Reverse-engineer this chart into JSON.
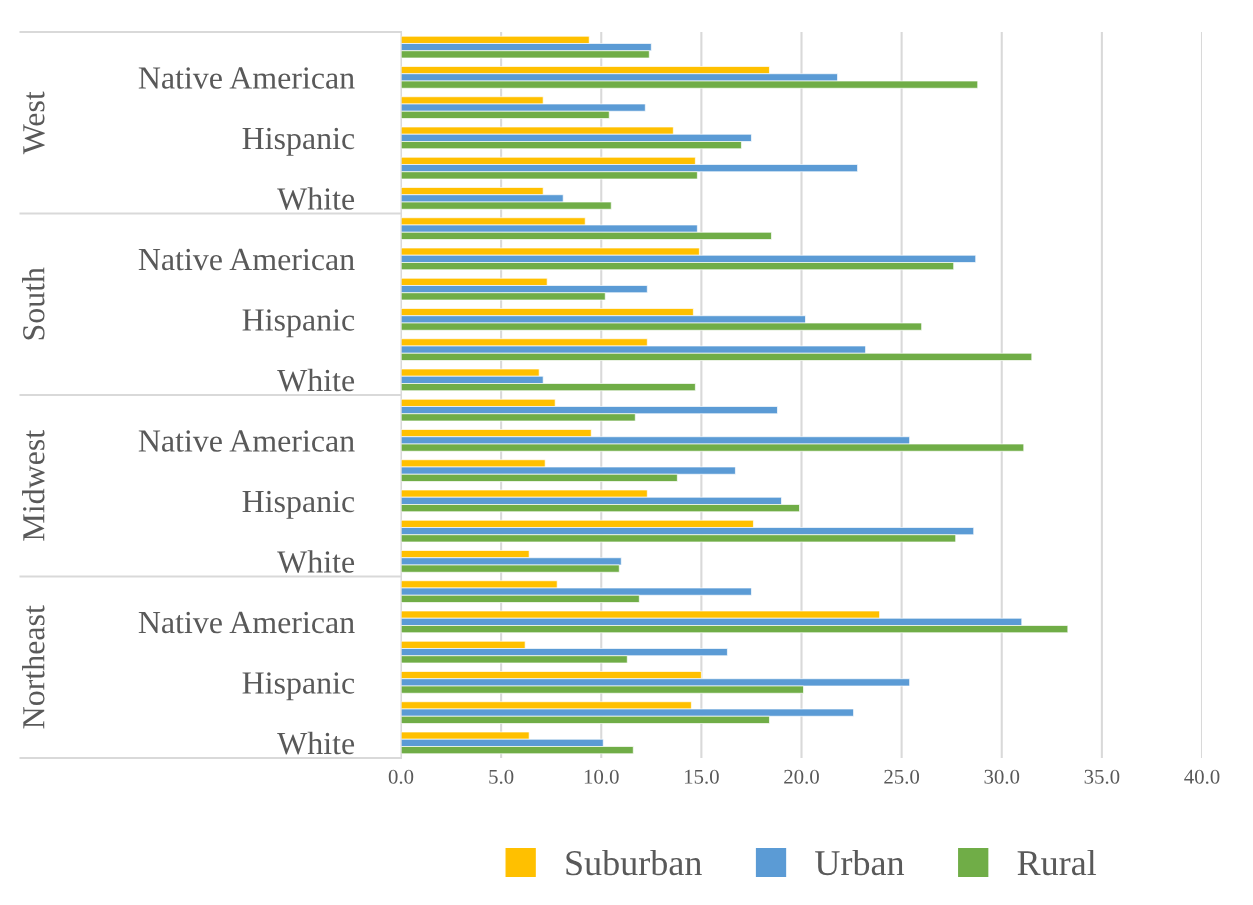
{
  "chart_data": {
    "type": "bar",
    "orientation": "horizontal",
    "categories": [
      null,
      "Native American",
      null,
      "Hispanic",
      null,
      "White",
      null,
      "Native American",
      null,
      "Hispanic",
      null,
      "White",
      null,
      "Native American",
      null,
      "Hispanic",
      null,
      "White",
      null,
      "Native American",
      null,
      "Hispanic",
      null,
      "White"
    ],
    "series": [
      {
        "name": "Suburban",
        "color": "#ffc000",
        "values": [
          9.4,
          18.4,
          7.1,
          13.6,
          14.7,
          7.1,
          9.2,
          14.9,
          7.3,
          14.6,
          12.3,
          6.9,
          7.7,
          9.5,
          7.2,
          12.3,
          17.6,
          6.4,
          7.8,
          23.9,
          6.2,
          15.0,
          14.5,
          6.4
        ]
      },
      {
        "name": "Urban",
        "color": "#5b9bd5",
        "values": [
          12.5,
          21.8,
          12.2,
          17.5,
          22.8,
          8.1,
          14.8,
          28.7,
          12.3,
          20.2,
          23.2,
          7.1,
          18.8,
          25.4,
          16.7,
          19.0,
          28.6,
          11.0,
          17.5,
          31.0,
          16.3,
          25.4,
          22.6,
          10.1
        ]
      },
      {
        "name": "Rural",
        "color": "#70ad47",
        "values": [
          12.4,
          28.8,
          10.4,
          17.0,
          14.8,
          10.5,
          18.5,
          27.6,
          10.2,
          26.0,
          31.5,
          14.7,
          11.7,
          31.1,
          13.8,
          19.9,
          27.7,
          10.9,
          11.9,
          33.3,
          11.3,
          20.1,
          18.4,
          11.6
        ]
      }
    ],
    "annotations": [
      "West",
      "South",
      "Midwest",
      "Northeast"
    ],
    "xlim": [
      0,
      40
    ],
    "xticks": [
      {
        "value": 0,
        "label": "0.0"
      },
      {
        "value": 5,
        "label": "5.0"
      },
      {
        "value": 10,
        "label": "10.0"
      },
      {
        "value": 15,
        "label": "15.0"
      },
      {
        "value": 20,
        "label": "20.0"
      },
      {
        "value": 25,
        "label": "25.0"
      },
      {
        "value": 30,
        "label": "30.0"
      },
      {
        "value": 35,
        "label": "35.0"
      },
      {
        "value": 40,
        "label": "40.0"
      }
    ],
    "grid": "x",
    "legend": "bottom"
  }
}
